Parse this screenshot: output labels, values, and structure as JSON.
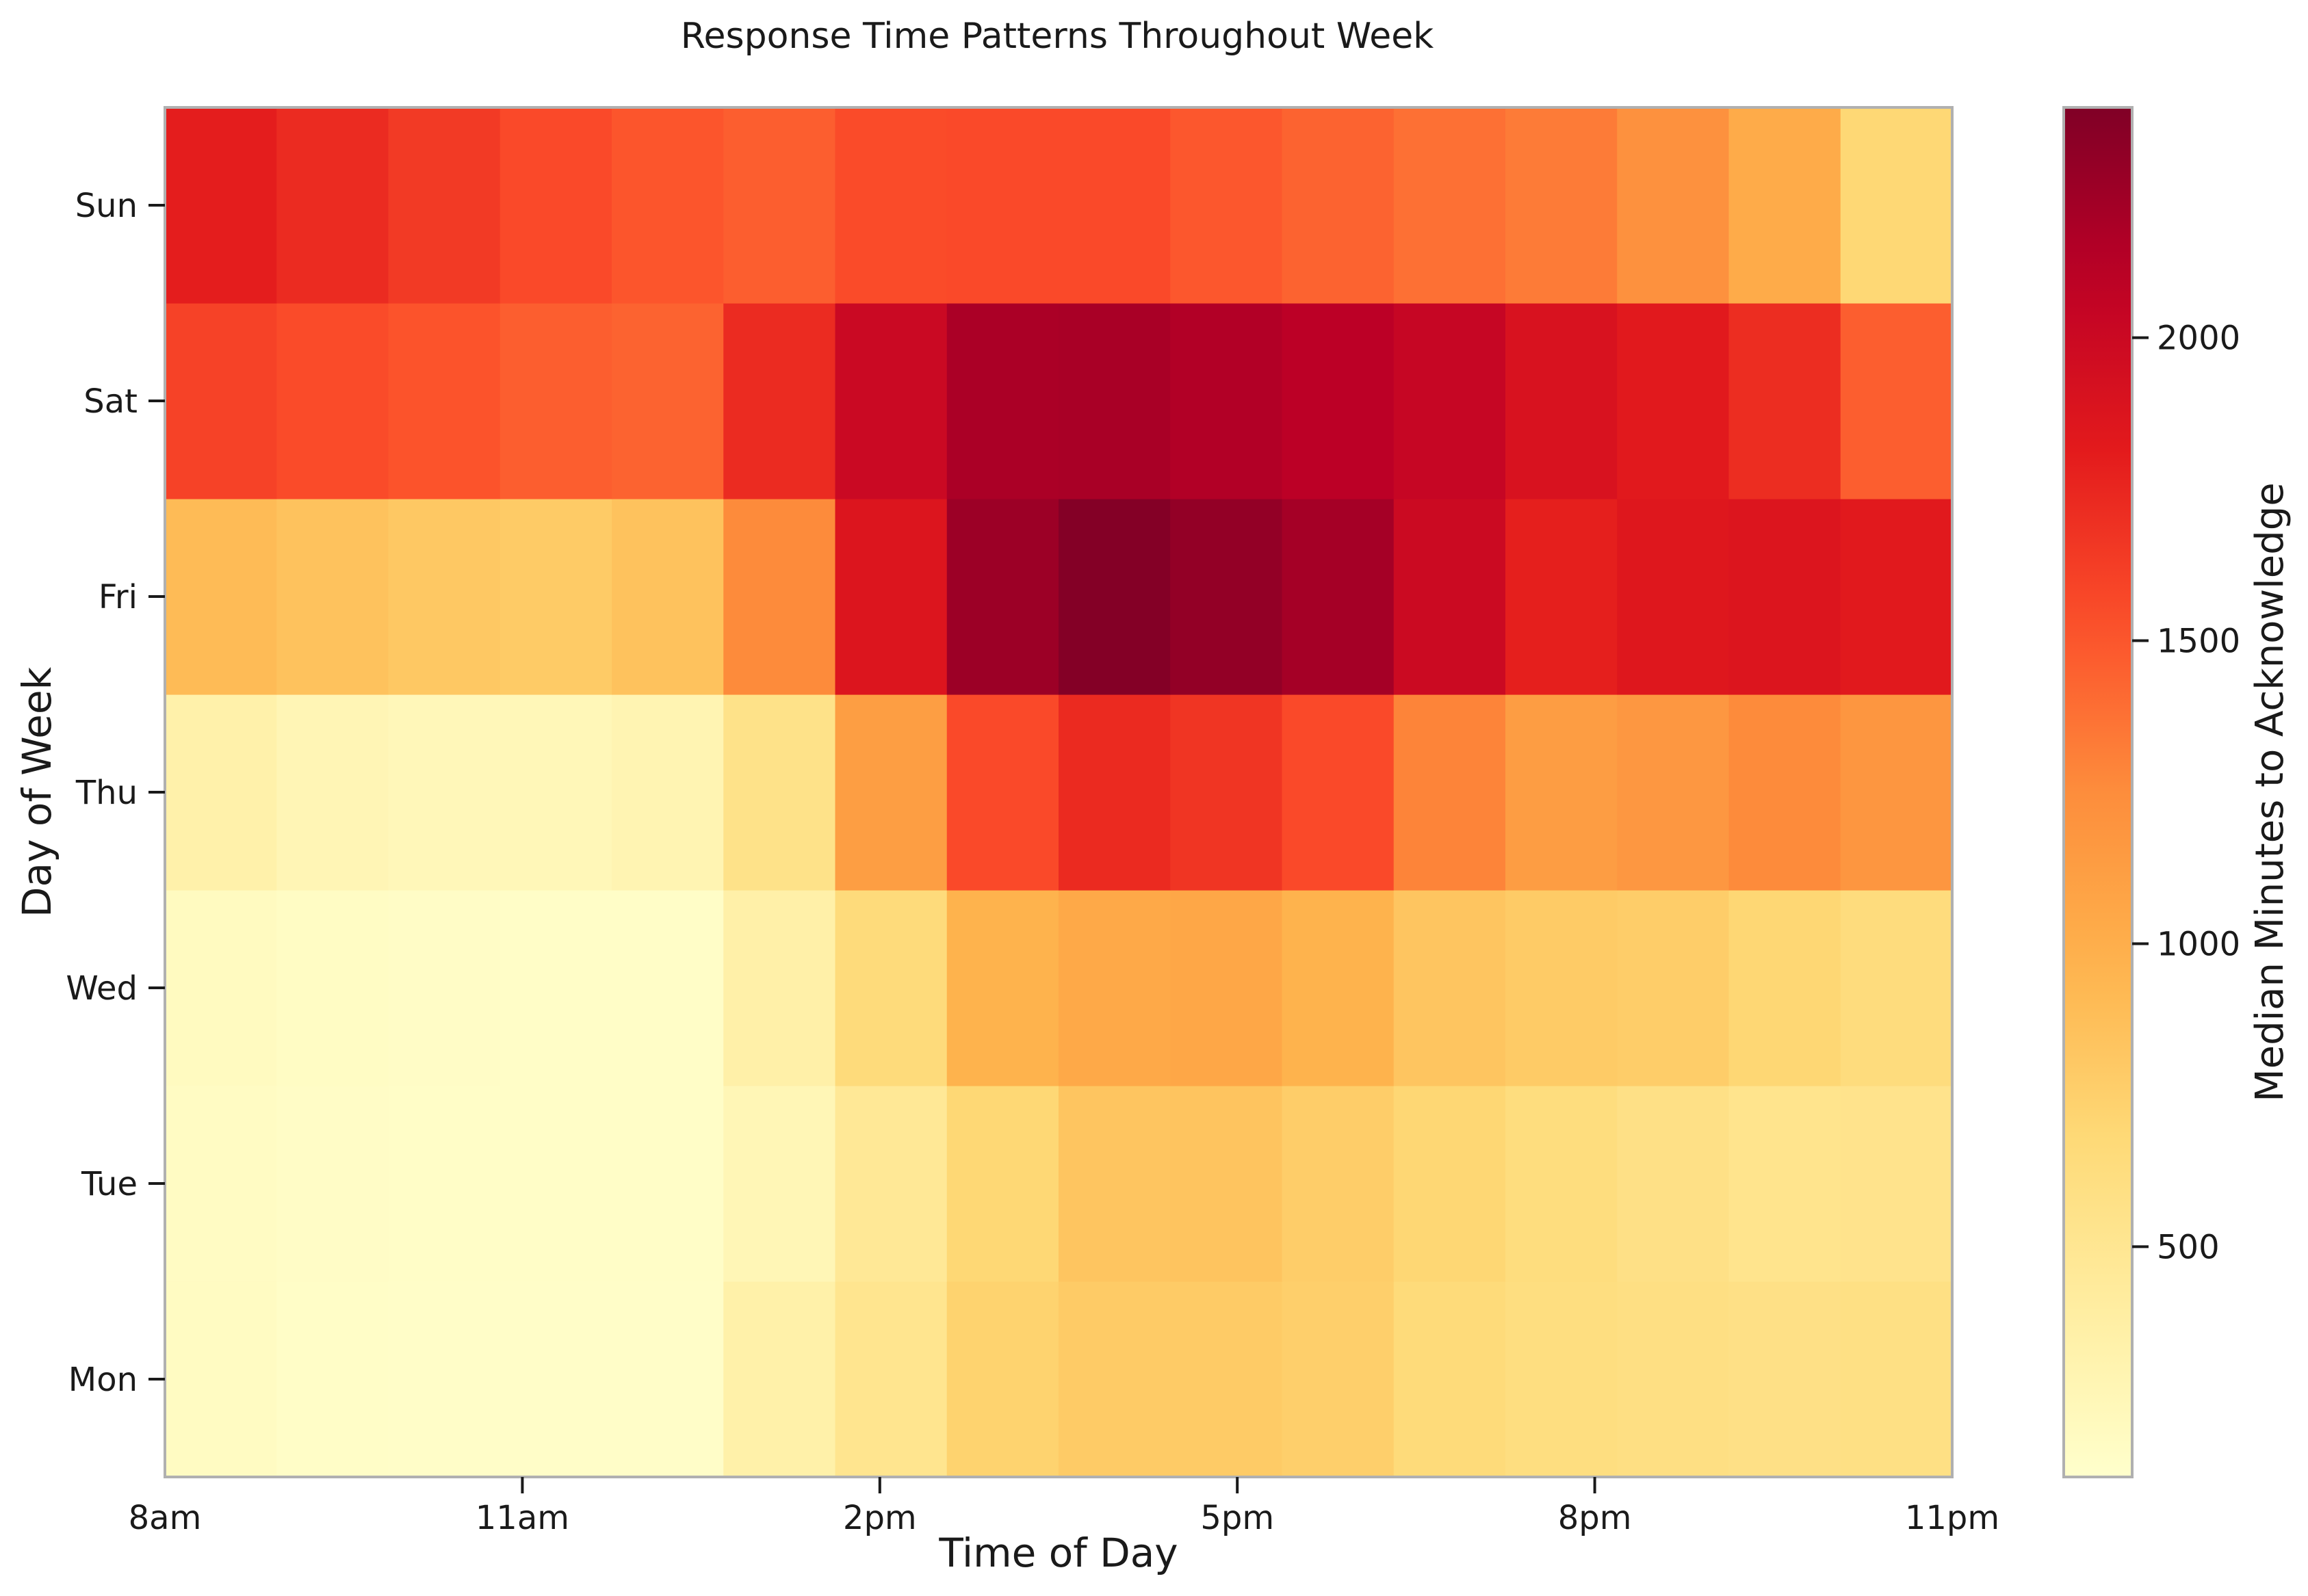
{
  "chart_data": {
    "type": "heatmap",
    "title": "Response Time Patterns Throughout Week",
    "xlabel": "Time of Day",
    "ylabel": "Day of Week",
    "colorbar_label": "Median Minutes to Acknowledge",
    "colormap": "YlOrRd",
    "x_tick_labels": [
      "8am",
      "11am",
      "2pm",
      "5pm",
      "8pm",
      "11pm"
    ],
    "x_range": [
      8,
      23
    ],
    "y_categories": [
      "Mon",
      "Tue",
      "Wed",
      "Thu",
      "Fri",
      "Sat",
      "Sun"
    ],
    "hours": [
      8,
      9,
      10,
      11,
      12,
      13,
      14,
      15,
      16,
      17,
      18,
      19,
      20,
      21,
      22,
      23
    ],
    "values": [
      [
        185,
        150,
        145,
        145,
        145,
        345,
        520,
        730,
        790,
        790,
        760,
        660,
        620,
        600,
        580,
        590
      ],
      [
        175,
        160,
        150,
        150,
        150,
        260,
        470,
        690,
        830,
        840,
        770,
        700,
        630,
        580,
        530,
        540
      ],
      [
        195,
        170,
        160,
        150,
        150,
        350,
        650,
        960,
        1040,
        1050,
        960,
        830,
        790,
        770,
        700,
        640
      ],
      [
        340,
        270,
        240,
        250,
        290,
        560,
        1120,
        1560,
        1730,
        1670,
        1560,
        1290,
        1130,
        1170,
        1260,
        1180
      ],
      [
        900,
        850,
        810,
        790,
        850,
        1260,
        1870,
        2250,
        2360,
        2290,
        2210,
        1990,
        1790,
        1850,
        1870,
        1830
      ],
      [
        1600,
        1550,
        1510,
        1460,
        1440,
        1720,
        2000,
        2180,
        2190,
        2150,
        2100,
        2030,
        1900,
        1830,
        1710,
        1460
      ],
      [
        1800,
        1720,
        1640,
        1560,
        1500,
        1460,
        1550,
        1560,
        1560,
        1490,
        1440,
        1380,
        1330,
        1220,
        1020,
        690
      ]
    ],
    "colorbar_ticks": [
      500,
      1000,
      1500,
      2000
    ],
    "color_range": [
      120,
      2380
    ],
    "grid": false
  }
}
